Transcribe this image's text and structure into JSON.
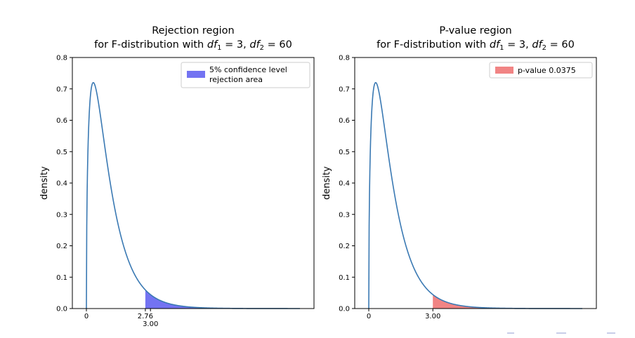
{
  "chart_data": [
    {
      "type": "area",
      "title_line1": "Rejection region",
      "title_line2_prefix": "for F-distribution with ",
      "df_symbol": "df",
      "df1_sub": "1",
      "df1_value": "3",
      "df2_sub": "2",
      "df2_value": "60",
      "ylabel": "density",
      "df1": 3,
      "df2": 60,
      "xlim": [
        0,
        10
      ],
      "ylim": [
        0,
        0.8
      ],
      "yticks": [
        "0.0",
        "0.1",
        "0.2",
        "0.3",
        "0.4",
        "0.5",
        "0.6",
        "0.7",
        "0.8"
      ],
      "xticks": [
        {
          "value": 0,
          "label": "0",
          "row": 1
        },
        {
          "value": 2.76,
          "label": "2.76",
          "row": 1
        },
        {
          "value": 3.0,
          "label": "3.00",
          "row": 2
        }
      ],
      "shade_from": 2.76,
      "shade_to": 10,
      "line_color": "#3a79b3",
      "shade_color": "#5a5af0",
      "legend": {
        "label_line1": "5% confidence level",
        "label_line2": "rejection area",
        "placement": "upper-right"
      }
    },
    {
      "type": "area",
      "title_line1": "P-value region",
      "title_line2_prefix": "for F-distribution with ",
      "df_symbol": "df",
      "df1_sub": "1",
      "df1_value": "3",
      "df2_sub": "2",
      "df2_value": "60",
      "ylabel": "density",
      "df1": 3,
      "df2": 60,
      "xlim": [
        0,
        10
      ],
      "ylim": [
        0,
        0.8
      ],
      "yticks": [
        "0.0",
        "0.1",
        "0.2",
        "0.3",
        "0.4",
        "0.5",
        "0.6",
        "0.7",
        "0.8"
      ],
      "xticks": [
        {
          "value": 0,
          "label": "0",
          "row": 1
        },
        {
          "value": 3.0,
          "label": "3.00",
          "row": 1
        }
      ],
      "shade_from": 3.0,
      "shade_to": 10,
      "line_color": "#3a79b3",
      "shade_color": "#ee6e6e",
      "legend": {
        "label_line1": "p-value 0.0375",
        "label_line2": "",
        "placement": "upper-right"
      }
    }
  ]
}
